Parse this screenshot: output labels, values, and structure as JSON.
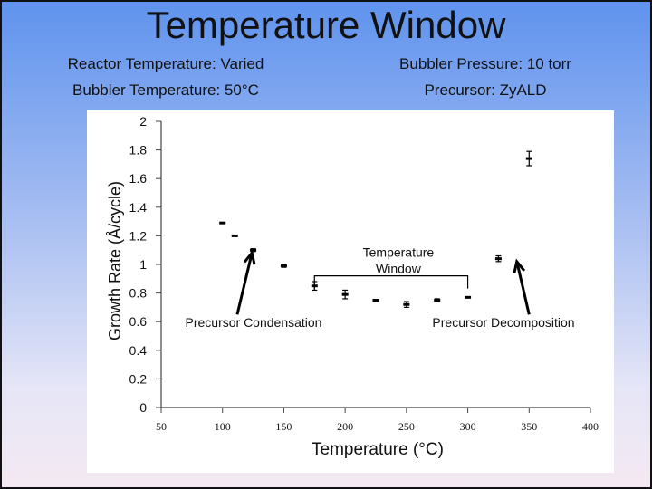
{
  "slide": {
    "title": "Temperature Window",
    "conditions": {
      "reactor_temperature": "Reactor Temperature: Varied",
      "bubbler_temperature": "Bubbler Temperature: 50°C",
      "bubbler_pressure": "Bubbler Pressure: 10 torr",
      "precursor": "Precursor: ZyALD"
    },
    "colors": {
      "background_top": "#5f93ee",
      "background_bottom": "#f4e9f2",
      "plot_area": "#ffffff"
    }
  },
  "chart_data": {
    "type": "scatter",
    "title": "",
    "xlabel": "Temperature (°C)",
    "ylabel": "Growth Rate (Å/cycle)",
    "xlim": [
      50,
      400
    ],
    "ylim": [
      0,
      2
    ],
    "x_ticks": [
      "50",
      "100",
      "150",
      "200",
      "250",
      "300",
      "350",
      "400"
    ],
    "y_ticks": [
      "0",
      "0.2",
      "0.4",
      "0.6",
      "0.8",
      "1",
      "1.2",
      "1.4",
      "1.6",
      "1.8",
      "2"
    ],
    "grid": false,
    "series": [
      {
        "marker": "dash with error bars",
        "x": [
          100,
          110,
          125,
          150,
          175,
          200,
          225,
          250,
          275,
          300,
          325,
          350
        ],
        "y": [
          1.29,
          1.2,
          1.1,
          0.99,
          0.85,
          0.79,
          0.75,
          0.72,
          0.75,
          0.77,
          1.04,
          1.74
        ],
        "error": [
          0,
          0,
          0.01,
          0.01,
          0.03,
          0.03,
          0,
          0.02,
          0.01,
          0,
          0.02,
          0.05
        ]
      }
    ],
    "annotations": [
      {
        "text": "Temperature\nWindow",
        "type": "bracket",
        "x_range": [
          175,
          300
        ],
        "y": 0.92
      },
      {
        "text": "Precursor Condensation",
        "type": "arrow",
        "arrow_from": [
          112,
          0.65
        ],
        "arrow_to": [
          124,
          1.08
        ]
      },
      {
        "text": "Precursor Decomposition",
        "type": "arrow",
        "arrow_from": [
          350,
          0.65
        ],
        "arrow_to": [
          340,
          1.02
        ]
      }
    ]
  }
}
